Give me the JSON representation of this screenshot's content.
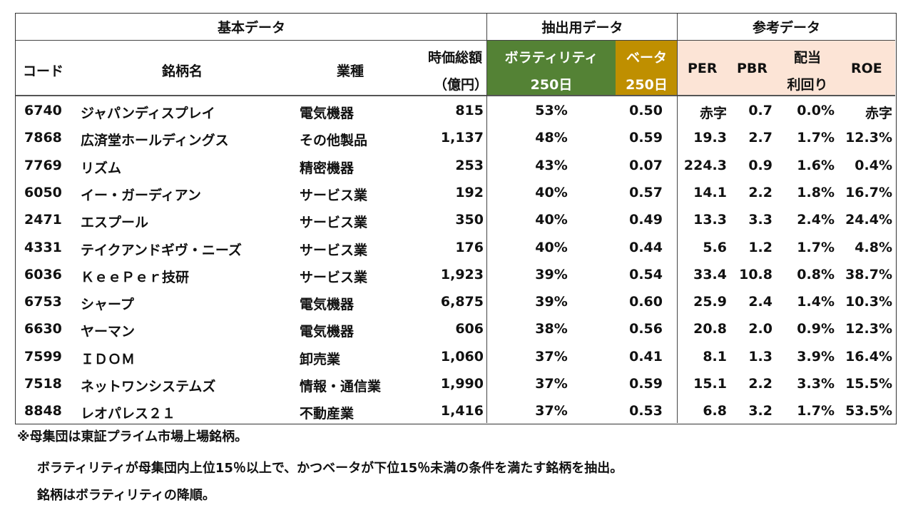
{
  "groups": {
    "basic": "基本データ",
    "extract": "抽出用データ",
    "reference": "参考データ"
  },
  "headers": {
    "code": "コード",
    "name": "銘柄名",
    "industry": "業種",
    "mcap_line1": "時価総額",
    "mcap_line2": "（億円）",
    "vol_line1": "ボラティリティ",
    "vol_line2": "250日",
    "beta_line1": "ベータ",
    "beta_line2": "250日",
    "per": "PER",
    "pbr": "PBR",
    "div_line1": "配当",
    "div_line2": "利回り",
    "roe": "ROE"
  },
  "colors": {
    "volatility_header": "#548235",
    "beta_header": "#BF8F00",
    "reference_header": "#FCE4D6"
  },
  "rows": [
    {
      "code": "6740",
      "name": "ジャパンディスプレイ",
      "industry": "電気機器",
      "mcap": "815",
      "vol": "53%",
      "beta": "0.50",
      "per": "赤字",
      "pbr": "0.7",
      "div": "0.0%",
      "roe": "赤字"
    },
    {
      "code": "7868",
      "name": "広済堂ホールディングス",
      "industry": "その他製品",
      "mcap": "1,137",
      "vol": "48%",
      "beta": "0.59",
      "per": "19.3",
      "pbr": "2.7",
      "div": "1.7%",
      "roe": "12.3%"
    },
    {
      "code": "7769",
      "name": "リズム",
      "industry": "精密機器",
      "mcap": "253",
      "vol": "43%",
      "beta": "0.07",
      "per": "224.3",
      "pbr": "0.9",
      "div": "1.6%",
      "roe": "0.4%"
    },
    {
      "code": "6050",
      "name": "イー・ガーディアン",
      "industry": "サービス業",
      "mcap": "192",
      "vol": "40%",
      "beta": "0.57",
      "per": "14.1",
      "pbr": "2.2",
      "div": "1.8%",
      "roe": "16.7%"
    },
    {
      "code": "2471",
      "name": "エスプール",
      "industry": "サービス業",
      "mcap": "350",
      "vol": "40%",
      "beta": "0.49",
      "per": "13.3",
      "pbr": "3.3",
      "div": "2.4%",
      "roe": "24.4%"
    },
    {
      "code": "4331",
      "name": "テイクアンドギヴ・ニーズ",
      "industry": "サービス業",
      "mcap": "176",
      "vol": "40%",
      "beta": "0.44",
      "per": "5.6",
      "pbr": "1.2",
      "div": "1.7%",
      "roe": "4.8%"
    },
    {
      "code": "6036",
      "name": "ＫｅｅＰｅｒ技研",
      "industry": "サービス業",
      "mcap": "1,923",
      "vol": "39%",
      "beta": "0.54",
      "per": "33.4",
      "pbr": "10.8",
      "div": "0.8%",
      "roe": "38.7%"
    },
    {
      "code": "6753",
      "name": "シャープ",
      "industry": "電気機器",
      "mcap": "6,875",
      "vol": "39%",
      "beta": "0.60",
      "per": "25.9",
      "pbr": "2.4",
      "div": "1.4%",
      "roe": "10.3%"
    },
    {
      "code": "6630",
      "name": "ヤーマン",
      "industry": "電気機器",
      "mcap": "606",
      "vol": "38%",
      "beta": "0.56",
      "per": "20.8",
      "pbr": "2.0",
      "div": "0.9%",
      "roe": "12.3%"
    },
    {
      "code": "7599",
      "name": "ＩＤＯＭ",
      "industry": "卸売業",
      "mcap": "1,060",
      "vol": "37%",
      "beta": "0.41",
      "per": "8.1",
      "pbr": "1.3",
      "div": "3.9%",
      "roe": "16.4%"
    },
    {
      "code": "7518",
      "name": "ネットワンシステムズ",
      "industry": "情報・通信業",
      "mcap": "1,990",
      "vol": "37%",
      "beta": "0.59",
      "per": "15.1",
      "pbr": "2.2",
      "div": "3.3%",
      "roe": "15.5%"
    },
    {
      "code": "8848",
      "name": "レオパレス２１",
      "industry": "不動産業",
      "mcap": "1,416",
      "vol": "37%",
      "beta": "0.53",
      "per": "6.8",
      "pbr": "3.2",
      "div": "1.7%",
      "roe": "53.5%"
    }
  ],
  "notes": [
    "※母集団は東証プライム市場上場銘柄。",
    "ボラティリティが母集団内上位15％以上で、かつベータが下位15％未満の条件を満たす銘柄を抽出。",
    "銘柄はボラティリティの降順。"
  ]
}
